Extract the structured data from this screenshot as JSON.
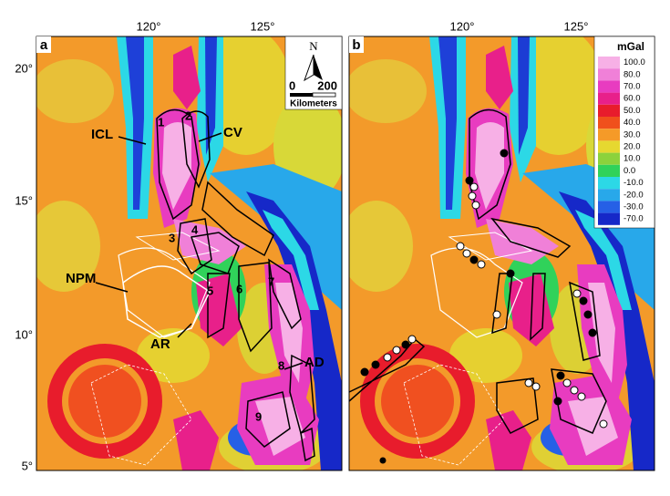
{
  "panels": [
    {
      "label": "a"
    },
    {
      "label": "b"
    }
  ],
  "axes": {
    "longitude_labels": [
      "120°",
      "125°"
    ],
    "latitude_labels": [
      "20°",
      "15°",
      "10°",
      "5°"
    ]
  },
  "map_labels": [
    "ICL",
    "CV",
    "1",
    "2",
    "3",
    "4",
    "5",
    "6",
    "7",
    "8",
    "9",
    "NPM",
    "AR",
    "AD"
  ],
  "scale_bar": {
    "north": "N",
    "start": "0",
    "end": "200",
    "unit": "Kilometers"
  },
  "legend": {
    "title": "mGal",
    "items": [
      {
        "label": "100.0",
        "color": "#f7b0e6"
      },
      {
        "label": "80.0",
        "color": "#f080d8"
      },
      {
        "label": "70.0",
        "color": "#e83cc0"
      },
      {
        "label": "60.0",
        "color": "#e8208a"
      },
      {
        "label": "50.0",
        "color": "#e81c2c"
      },
      {
        "label": "40.0",
        "color": "#f0501c"
      },
      {
        "label": "30.0",
        "color": "#f59a28"
      },
      {
        "label": "20.0",
        "color": "#e6d830"
      },
      {
        "label": "10.0",
        "color": "#8cd23c"
      },
      {
        "label": "0.0",
        "color": "#30d25a"
      },
      {
        "label": "-10.0",
        "color": "#2cd8e6"
      },
      {
        "label": "-20.0",
        "color": "#28a8ea"
      },
      {
        "label": "-30.0",
        "color": "#2660e6"
      },
      {
        "label": "-70.0",
        "color": "#1628c8"
      }
    ]
  }
}
